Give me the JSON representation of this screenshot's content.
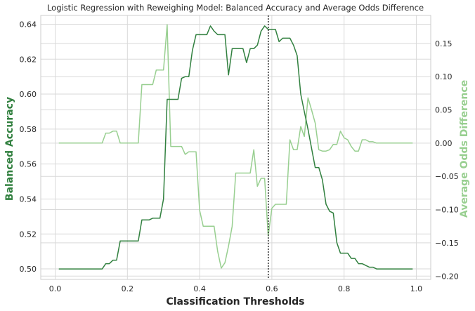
{
  "chart_data": {
    "type": "line",
    "title": "Logistic Regression with Reweighing Model: Balanced Accuracy and Average Odds Difference",
    "xlabel": "Classification Thresholds",
    "ylabel_left": "Balanced Accuracy",
    "ylabel_right": "Average Odds Difference",
    "xlim": [
      -0.04,
      1.04
    ],
    "ylim_left": [
      0.494,
      0.645
    ],
    "ylim_right": [
      -0.205,
      0.192
    ],
    "x_ticks": [
      "0.0",
      "0.2",
      "0.4",
      "0.6",
      "0.8",
      "1.0"
    ],
    "x_tick_values": [
      0.0,
      0.2,
      0.4,
      0.6,
      0.8,
      1.0
    ],
    "y_ticks_left": [
      "0.50",
      "0.52",
      "0.54",
      "0.56",
      "0.58",
      "0.60",
      "0.62",
      "0.64"
    ],
    "y_tick_values_left": [
      0.5,
      0.52,
      0.54,
      0.56,
      0.58,
      0.6,
      0.62,
      0.64
    ],
    "y_ticks_right": [
      "0.15",
      "0.10",
      "0.05",
      "0.00",
      "−0.05",
      "−0.10",
      "−0.15",
      "−0.20"
    ],
    "y_tick_values_right": [
      0.15,
      0.1,
      0.05,
      0.0,
      -0.05,
      -0.1,
      -0.15,
      -0.2
    ],
    "grid": true,
    "vline_x": 0.59,
    "colors": {
      "left": "#31803f",
      "right": "#98cf90",
      "vline": "#262626",
      "grid": "#d9d9d9"
    },
    "series": [
      {
        "axis": "left",
        "x": [
          0.01,
          0.02,
          0.03,
          0.04,
          0.05,
          0.06,
          0.07,
          0.08,
          0.09,
          0.1,
          0.11,
          0.12,
          0.13,
          0.14,
          0.15,
          0.16,
          0.17,
          0.18,
          0.19,
          0.2,
          0.21,
          0.22,
          0.23,
          0.24,
          0.25,
          0.26,
          0.27,
          0.28,
          0.29,
          0.3,
          0.31,
          0.32,
          0.33,
          0.34,
          0.35,
          0.36,
          0.37,
          0.38,
          0.39,
          0.4,
          0.41,
          0.42,
          0.43,
          0.44,
          0.45,
          0.46,
          0.47,
          0.48,
          0.49,
          0.5,
          0.51,
          0.52,
          0.53,
          0.54,
          0.55,
          0.56,
          0.57,
          0.58,
          0.59,
          0.6,
          0.61,
          0.62,
          0.63,
          0.64,
          0.65,
          0.66,
          0.67,
          0.68,
          0.69,
          0.7,
          0.71,
          0.72,
          0.73,
          0.74,
          0.75,
          0.76,
          0.77,
          0.78,
          0.79,
          0.8,
          0.81,
          0.82,
          0.83,
          0.84,
          0.85,
          0.86,
          0.87,
          0.88,
          0.89,
          0.9,
          0.91,
          0.92,
          0.93,
          0.94,
          0.95,
          0.96,
          0.97,
          0.98,
          0.99
        ],
        "values": [
          0.5,
          0.5,
          0.5,
          0.5,
          0.5,
          0.5,
          0.5,
          0.5,
          0.5,
          0.5,
          0.5,
          0.5,
          0.5,
          0.503,
          0.503,
          0.505,
          0.505,
          0.516,
          0.516,
          0.516,
          0.516,
          0.516,
          0.516,
          0.528,
          0.528,
          0.528,
          0.529,
          0.529,
          0.529,
          0.54,
          0.597,
          0.597,
          0.597,
          0.597,
          0.609,
          0.61,
          0.61,
          0.625,
          0.634,
          0.634,
          0.634,
          0.634,
          0.639,
          0.636,
          0.634,
          0.634,
          0.634,
          0.611,
          0.626,
          0.626,
          0.626,
          0.626,
          0.618,
          0.626,
          0.626,
          0.628,
          0.636,
          0.639,
          0.637,
          0.637,
          0.637,
          0.63,
          0.632,
          0.632,
          0.632,
          0.628,
          0.622,
          0.6,
          0.59,
          0.58,
          0.569,
          0.558,
          0.558,
          0.551,
          0.537,
          0.533,
          0.532,
          0.515,
          0.509,
          0.509,
          0.509,
          0.506,
          0.506,
          0.503,
          0.503,
          0.502,
          0.501,
          0.501,
          0.5,
          0.5,
          0.5,
          0.5,
          0.5,
          0.5,
          0.5,
          0.5,
          0.5,
          0.5,
          0.5
        ]
      },
      {
        "axis": "right",
        "x": [
          0.01,
          0.02,
          0.03,
          0.04,
          0.05,
          0.06,
          0.07,
          0.08,
          0.09,
          0.1,
          0.11,
          0.12,
          0.13,
          0.14,
          0.15,
          0.16,
          0.17,
          0.18,
          0.19,
          0.2,
          0.21,
          0.22,
          0.23,
          0.24,
          0.25,
          0.26,
          0.27,
          0.28,
          0.29,
          0.3,
          0.31,
          0.32,
          0.33,
          0.34,
          0.35,
          0.36,
          0.37,
          0.38,
          0.39,
          0.4,
          0.41,
          0.42,
          0.43,
          0.44,
          0.45,
          0.46,
          0.47,
          0.48,
          0.49,
          0.5,
          0.51,
          0.52,
          0.53,
          0.54,
          0.55,
          0.56,
          0.57,
          0.58,
          0.59,
          0.6,
          0.61,
          0.62,
          0.63,
          0.64,
          0.65,
          0.66,
          0.67,
          0.68,
          0.69,
          0.7,
          0.71,
          0.72,
          0.73,
          0.74,
          0.75,
          0.76,
          0.77,
          0.78,
          0.79,
          0.8,
          0.81,
          0.82,
          0.83,
          0.84,
          0.85,
          0.86,
          0.87,
          0.88,
          0.89,
          0.9,
          0.91,
          0.92,
          0.93,
          0.94,
          0.95,
          0.96,
          0.97,
          0.98,
          0.99
        ],
        "values": [
          0.0,
          0.0,
          0.0,
          0.0,
          0.0,
          0.0,
          0.0,
          0.0,
          0.0,
          0.0,
          0.0,
          0.0,
          0.0,
          0.015,
          0.015,
          0.018,
          0.018,
          0.0,
          0.0,
          0.0,
          0.0,
          0.0,
          0.0,
          0.088,
          0.088,
          0.088,
          0.088,
          0.11,
          0.11,
          0.11,
          0.178,
          -0.005,
          -0.005,
          -0.005,
          -0.005,
          -0.017,
          -0.013,
          -0.013,
          -0.013,
          -0.101,
          -0.125,
          -0.125,
          -0.125,
          -0.125,
          -0.163,
          -0.188,
          -0.18,
          -0.155,
          -0.125,
          -0.045,
          -0.045,
          -0.045,
          -0.045,
          -0.045,
          -0.01,
          -0.065,
          -0.053,
          -0.053,
          -0.14,
          -0.098,
          -0.092,
          -0.092,
          -0.092,
          -0.092,
          0.005,
          -0.01,
          -0.01,
          0.025,
          0.01,
          0.068,
          0.05,
          0.03,
          -0.01,
          -0.012,
          -0.012,
          -0.01,
          -0.002,
          -0.002,
          0.018,
          0.008,
          0.005,
          -0.005,
          -0.012,
          -0.012,
          0.005,
          0.005,
          0.002,
          0.002,
          0.0,
          0.0,
          0.0,
          0.0,
          0.0,
          0.0,
          0.0,
          0.0,
          0.0,
          0.0,
          0.0
        ]
      }
    ]
  }
}
